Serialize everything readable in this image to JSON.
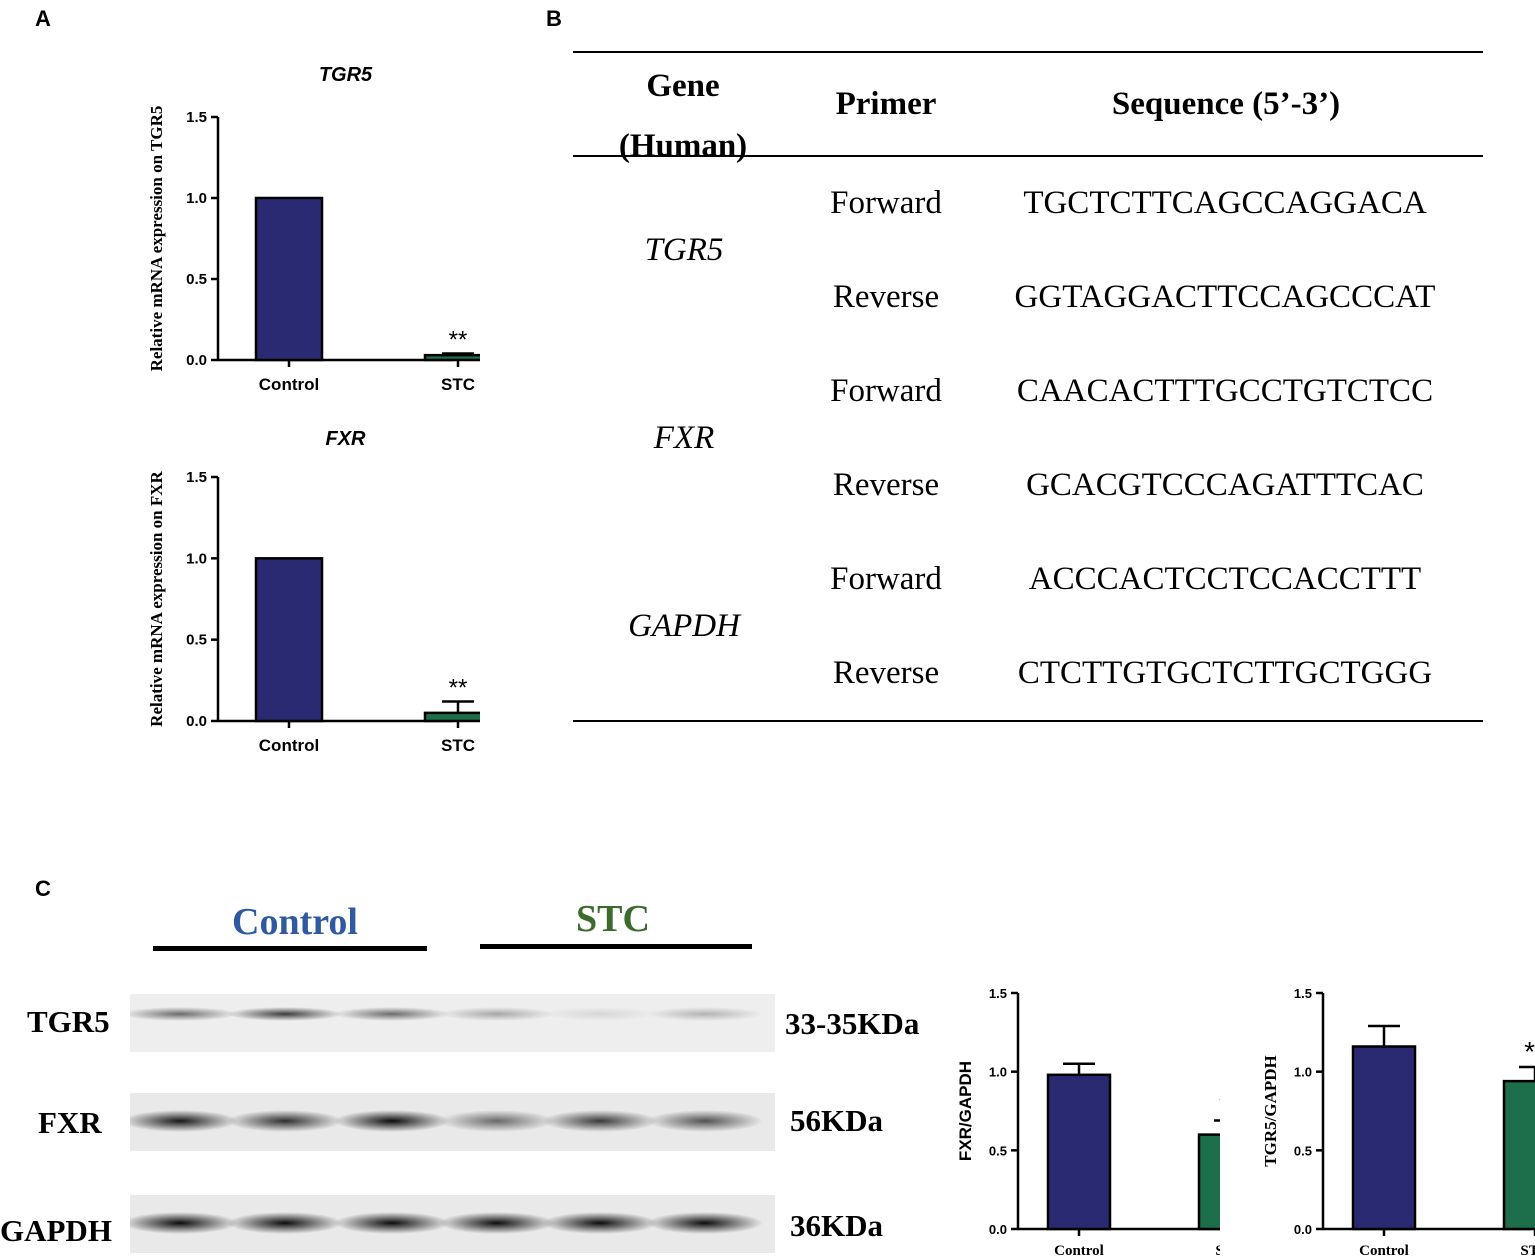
{
  "panels": {
    "a": "A",
    "b": "B",
    "c": "C"
  },
  "colors": {
    "control": "#2a2a72",
    "stc": "#1d6e4a",
    "control_text": "#2f5aa0",
    "stc_text": "#3d6b2e"
  },
  "significance": "**",
  "table": {
    "headers": {
      "gene": "Gene (Human)",
      "primer": "Primer",
      "sequence": "Sequence (5’-3’)"
    },
    "rows": [
      {
        "gene": "TGR5",
        "primer": "Forward",
        "sequence": "TGCTCTTCAGCCAGGACA"
      },
      {
        "gene": "",
        "primer": "Reverse",
        "sequence": "GGTAGGACTTCCAGCCCAT"
      },
      {
        "gene": "FXR",
        "primer": "Forward",
        "sequence": "CAACACTTTGCCTGTCTCC"
      },
      {
        "gene": "",
        "primer": "Reverse",
        "sequence": "GCACGTCCCAGATTTCAC"
      },
      {
        "gene": "GAPDH",
        "primer": "Forward",
        "sequence": "ACCCACTCCTCCACCTTT"
      },
      {
        "gene": "",
        "primer": "Reverse",
        "sequence": "CTCTTGTGCTCTTGCTGGG"
      }
    ]
  },
  "blot": {
    "group_control": "Control",
    "group_stc": "STC",
    "rows": [
      {
        "protein": "TGR5",
        "size": "33-35KDa",
        "intensity": [
          0.55,
          0.75,
          0.55,
          0.3,
          0.1,
          0.25
        ]
      },
      {
        "protein": "FXR",
        "size": "56KDa",
        "intensity": [
          0.9,
          0.8,
          0.95,
          0.55,
          0.75,
          0.65
        ]
      },
      {
        "protein": "GAPDH",
        "size": "36KDa",
        "intensity": [
          0.95,
          0.95,
          0.95,
          0.95,
          0.95,
          0.95
        ]
      }
    ]
  },
  "chart_data": [
    {
      "type": "bar",
      "title": "TGR5",
      "ylabel": "Relative mRNA expression on TGR5",
      "categories": [
        "Control",
        "STC"
      ],
      "values": [
        1.0,
        0.03
      ],
      "errors": [
        0,
        0.01
      ],
      "significance": [
        "",
        "**"
      ],
      "ylim": [
        0,
        1.5
      ],
      "yticks": [
        "0.0",
        "0.5",
        "1.0",
        "1.5"
      ]
    },
    {
      "type": "bar",
      "title": "FXR",
      "ylabel": "Relative mRNA expression on FXR",
      "categories": [
        "Control",
        "STC"
      ],
      "values": [
        1.0,
        0.05
      ],
      "errors": [
        0,
        0.07
      ],
      "significance": [
        "",
        "**"
      ],
      "ylim": [
        0,
        1.5
      ],
      "yticks": [
        "0.0",
        "0.5",
        "1.0",
        "1.5"
      ]
    },
    {
      "type": "bar",
      "title": "",
      "ylabel": "FXR/GAPDH",
      "categories": [
        "Control",
        "STC"
      ],
      "values": [
        0.98,
        0.6
      ],
      "errors": [
        0.07,
        0.09
      ],
      "significance": [
        "",
        "**"
      ],
      "ylim": [
        0,
        1.5
      ],
      "yticks": [
        "0.0",
        "0.5",
        "1.0",
        "1.5"
      ]
    },
    {
      "type": "bar",
      "title": "",
      "ylabel": "TGR5/GAPDH",
      "categories": [
        "Control",
        "STC"
      ],
      "values": [
        1.16,
        0.94
      ],
      "errors": [
        0.13,
        0.09
      ],
      "significance": [
        "",
        "**"
      ],
      "ylim": [
        0,
        1.5
      ],
      "yticks": [
        "0.0",
        "0.5",
        "1.0",
        "1.5"
      ]
    }
  ]
}
